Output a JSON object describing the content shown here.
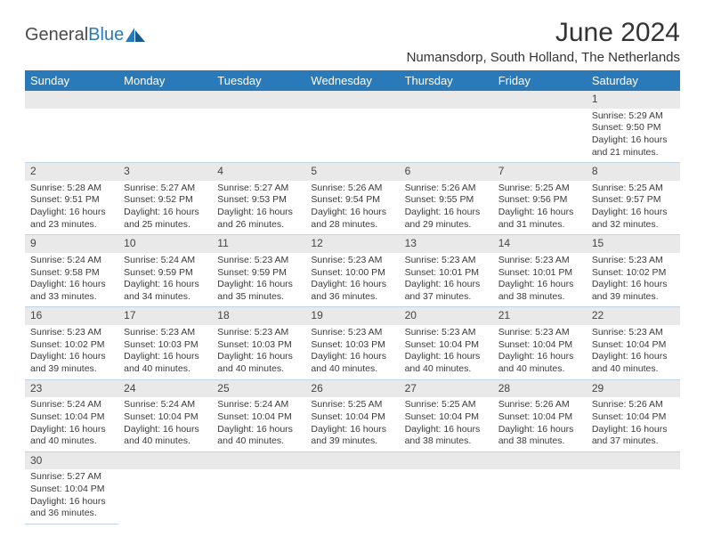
{
  "logo": {
    "part1": "General",
    "part2": "Blue"
  },
  "title": "June 2024",
  "location": "Numansdorp, South Holland, The Netherlands",
  "colors": {
    "header_bg": "#2a7ab9",
    "header_text": "#ffffff",
    "daynum_bg": "#e9e9e9",
    "border": "#c0d4e5"
  },
  "day_headers": [
    "Sunday",
    "Monday",
    "Tuesday",
    "Wednesday",
    "Thursday",
    "Friday",
    "Saturday"
  ],
  "weeks": [
    {
      "nums": [
        "",
        "",
        "",
        "",
        "",
        "",
        "1"
      ],
      "cells": [
        null,
        null,
        null,
        null,
        null,
        null,
        {
          "sunrise": "Sunrise: 5:29 AM",
          "sunset": "Sunset: 9:50 PM",
          "daylight": "Daylight: 16 hours and 21 minutes."
        }
      ]
    },
    {
      "nums": [
        "2",
        "3",
        "4",
        "5",
        "6",
        "7",
        "8"
      ],
      "cells": [
        {
          "sunrise": "Sunrise: 5:28 AM",
          "sunset": "Sunset: 9:51 PM",
          "daylight": "Daylight: 16 hours and 23 minutes."
        },
        {
          "sunrise": "Sunrise: 5:27 AM",
          "sunset": "Sunset: 9:52 PM",
          "daylight": "Daylight: 16 hours and 25 minutes."
        },
        {
          "sunrise": "Sunrise: 5:27 AM",
          "sunset": "Sunset: 9:53 PM",
          "daylight": "Daylight: 16 hours and 26 minutes."
        },
        {
          "sunrise": "Sunrise: 5:26 AM",
          "sunset": "Sunset: 9:54 PM",
          "daylight": "Daylight: 16 hours and 28 minutes."
        },
        {
          "sunrise": "Sunrise: 5:26 AM",
          "sunset": "Sunset: 9:55 PM",
          "daylight": "Daylight: 16 hours and 29 minutes."
        },
        {
          "sunrise": "Sunrise: 5:25 AM",
          "sunset": "Sunset: 9:56 PM",
          "daylight": "Daylight: 16 hours and 31 minutes."
        },
        {
          "sunrise": "Sunrise: 5:25 AM",
          "sunset": "Sunset: 9:57 PM",
          "daylight": "Daylight: 16 hours and 32 minutes."
        }
      ]
    },
    {
      "nums": [
        "9",
        "10",
        "11",
        "12",
        "13",
        "14",
        "15"
      ],
      "cells": [
        {
          "sunrise": "Sunrise: 5:24 AM",
          "sunset": "Sunset: 9:58 PM",
          "daylight": "Daylight: 16 hours and 33 minutes."
        },
        {
          "sunrise": "Sunrise: 5:24 AM",
          "sunset": "Sunset: 9:59 PM",
          "daylight": "Daylight: 16 hours and 34 minutes."
        },
        {
          "sunrise": "Sunrise: 5:23 AM",
          "sunset": "Sunset: 9:59 PM",
          "daylight": "Daylight: 16 hours and 35 minutes."
        },
        {
          "sunrise": "Sunrise: 5:23 AM",
          "sunset": "Sunset: 10:00 PM",
          "daylight": "Daylight: 16 hours and 36 minutes."
        },
        {
          "sunrise": "Sunrise: 5:23 AM",
          "sunset": "Sunset: 10:01 PM",
          "daylight": "Daylight: 16 hours and 37 minutes."
        },
        {
          "sunrise": "Sunrise: 5:23 AM",
          "sunset": "Sunset: 10:01 PM",
          "daylight": "Daylight: 16 hours and 38 minutes."
        },
        {
          "sunrise": "Sunrise: 5:23 AM",
          "sunset": "Sunset: 10:02 PM",
          "daylight": "Daylight: 16 hours and 39 minutes."
        }
      ]
    },
    {
      "nums": [
        "16",
        "17",
        "18",
        "19",
        "20",
        "21",
        "22"
      ],
      "cells": [
        {
          "sunrise": "Sunrise: 5:23 AM",
          "sunset": "Sunset: 10:02 PM",
          "daylight": "Daylight: 16 hours and 39 minutes."
        },
        {
          "sunrise": "Sunrise: 5:23 AM",
          "sunset": "Sunset: 10:03 PM",
          "daylight": "Daylight: 16 hours and 40 minutes."
        },
        {
          "sunrise": "Sunrise: 5:23 AM",
          "sunset": "Sunset: 10:03 PM",
          "daylight": "Daylight: 16 hours and 40 minutes."
        },
        {
          "sunrise": "Sunrise: 5:23 AM",
          "sunset": "Sunset: 10:03 PM",
          "daylight": "Daylight: 16 hours and 40 minutes."
        },
        {
          "sunrise": "Sunrise: 5:23 AM",
          "sunset": "Sunset: 10:04 PM",
          "daylight": "Daylight: 16 hours and 40 minutes."
        },
        {
          "sunrise": "Sunrise: 5:23 AM",
          "sunset": "Sunset: 10:04 PM",
          "daylight": "Daylight: 16 hours and 40 minutes."
        },
        {
          "sunrise": "Sunrise: 5:23 AM",
          "sunset": "Sunset: 10:04 PM",
          "daylight": "Daylight: 16 hours and 40 minutes."
        }
      ]
    },
    {
      "nums": [
        "23",
        "24",
        "25",
        "26",
        "27",
        "28",
        "29"
      ],
      "cells": [
        {
          "sunrise": "Sunrise: 5:24 AM",
          "sunset": "Sunset: 10:04 PM",
          "daylight": "Daylight: 16 hours and 40 minutes."
        },
        {
          "sunrise": "Sunrise: 5:24 AM",
          "sunset": "Sunset: 10:04 PM",
          "daylight": "Daylight: 16 hours and 40 minutes."
        },
        {
          "sunrise": "Sunrise: 5:24 AM",
          "sunset": "Sunset: 10:04 PM",
          "daylight": "Daylight: 16 hours and 40 minutes."
        },
        {
          "sunrise": "Sunrise: 5:25 AM",
          "sunset": "Sunset: 10:04 PM",
          "daylight": "Daylight: 16 hours and 39 minutes."
        },
        {
          "sunrise": "Sunrise: 5:25 AM",
          "sunset": "Sunset: 10:04 PM",
          "daylight": "Daylight: 16 hours and 38 minutes."
        },
        {
          "sunrise": "Sunrise: 5:26 AM",
          "sunset": "Sunset: 10:04 PM",
          "daylight": "Daylight: 16 hours and 38 minutes."
        },
        {
          "sunrise": "Sunrise: 5:26 AM",
          "sunset": "Sunset: 10:04 PM",
          "daylight": "Daylight: 16 hours and 37 minutes."
        }
      ]
    },
    {
      "nums": [
        "30",
        "",
        "",
        "",
        "",
        "",
        ""
      ],
      "cells": [
        {
          "sunrise": "Sunrise: 5:27 AM",
          "sunset": "Sunset: 10:04 PM",
          "daylight": "Daylight: 16 hours and 36 minutes."
        },
        null,
        null,
        null,
        null,
        null,
        null
      ]
    }
  ]
}
